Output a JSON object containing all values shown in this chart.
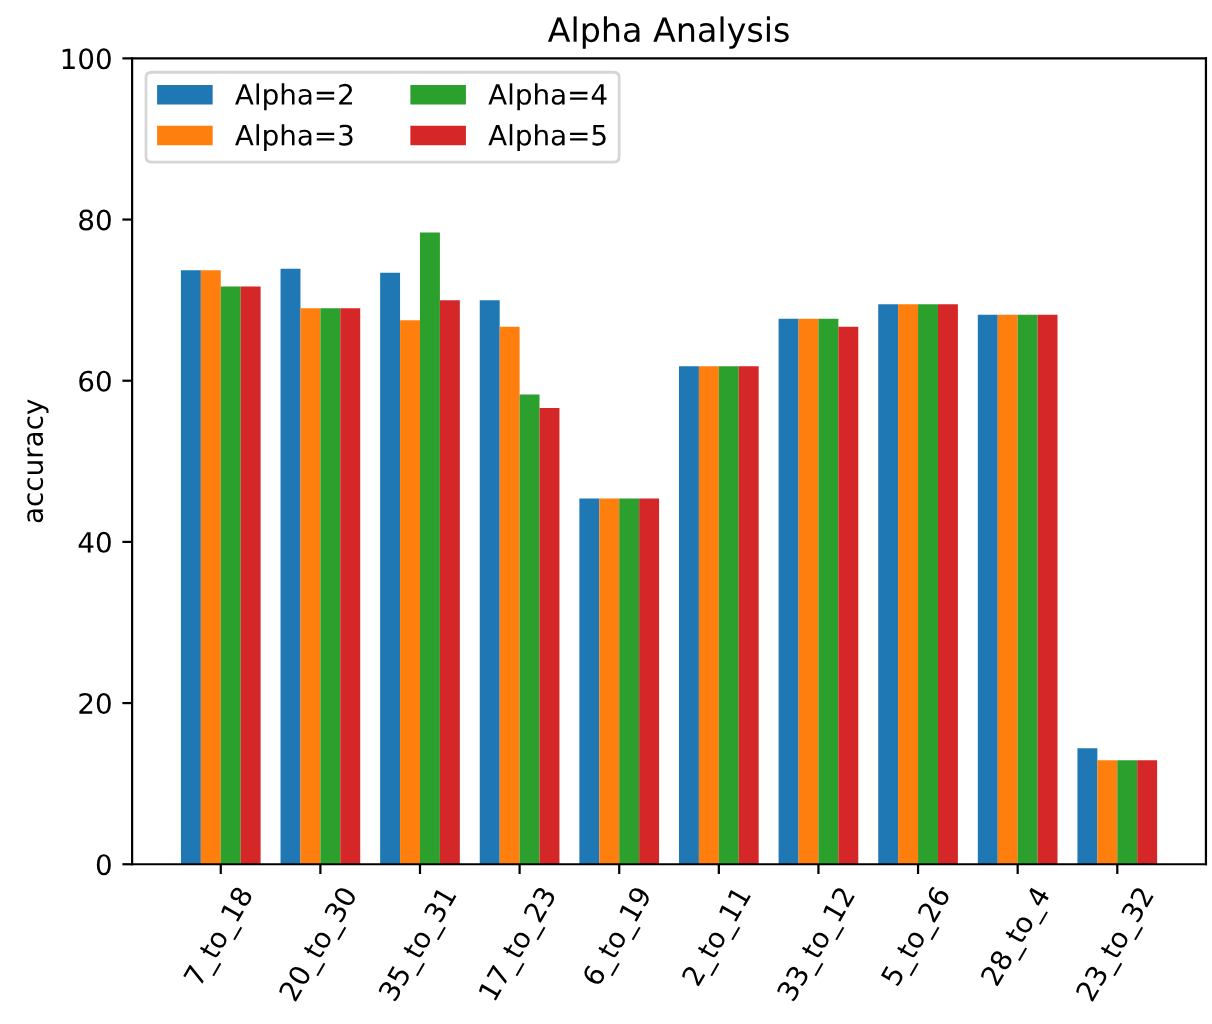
{
  "chart_data": {
    "type": "bar",
    "title": "Alpha Analysis",
    "ylabel": "accuracy",
    "categories": [
      "7_to_18",
      "20_to_30",
      "35_to_31",
      "17_to_23",
      "6_to_19",
      "2_to_11",
      "33_to_12",
      "5_to_26",
      "28_to_4",
      "23_to_32"
    ],
    "series": [
      {
        "name": "Alpha=2",
        "color": "#1f77b4",
        "values": [
          73.7,
          73.9,
          73.4,
          70.0,
          45.4,
          61.8,
          67.7,
          69.5,
          68.2,
          14.4
        ]
      },
      {
        "name": "Alpha=3",
        "color": "#ff7f0e",
        "values": [
          73.7,
          69.0,
          67.5,
          66.7,
          45.4,
          61.8,
          67.7,
          69.5,
          68.2,
          12.9
        ]
      },
      {
        "name": "Alpha=4",
        "color": "#2ca02c",
        "values": [
          71.7,
          69.0,
          78.4,
          58.3,
          45.4,
          61.8,
          67.7,
          69.5,
          68.2,
          12.9
        ]
      },
      {
        "name": "Alpha=5",
        "color": "#d62728",
        "values": [
          71.7,
          69.0,
          70.0,
          56.6,
          45.4,
          61.8,
          66.7,
          69.5,
          68.2,
          12.9
        ]
      }
    ],
    "ylim": [
      0,
      100
    ],
    "yticks": [
      0,
      20,
      40,
      60,
      80,
      100
    ],
    "legend": "top left",
    "grid": false
  }
}
